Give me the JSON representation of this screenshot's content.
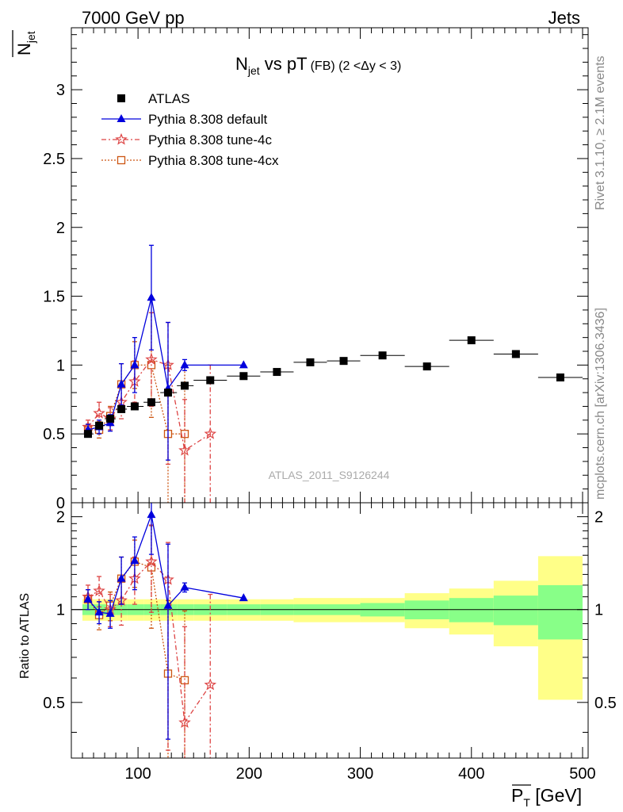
{
  "header": {
    "left": "7000 GeV pp",
    "right": "Jets"
  },
  "side_text": {
    "rivet": "Rivet 3.1.10, ≥ 2.1M events",
    "source": "mcplots.cern.ch [arXiv:1306.3436]"
  },
  "watermark": "ATLAS_2011_S9126244",
  "chart_data": {
    "type": "scatter",
    "title_main": "N",
    "title_sub": "jet",
    "title_rest": " vs pT",
    "title_small": "(FB) (2 <Δy < 3)",
    "ylabel_top": "N",
    "ylabel_top_sub": "jet",
    "ylabel_bottom": "Ratio to ATLAS",
    "xlabel": "P",
    "xlabel_sub": "T",
    "xlabel_unit": " [GeV]",
    "xlim": [
      40,
      505
    ],
    "top": {
      "ylim": [
        0,
        3.45
      ],
      "yticks": [
        "0",
        "0.5",
        "1",
        "1.5",
        "2",
        "2.5",
        "3"
      ]
    },
    "bottom": {
      "ylim": [
        0.33,
        2.22
      ],
      "yticks_left": [
        "0.5",
        "1",
        "2"
      ],
      "yticks_right": [
        "0.5",
        "1",
        "2"
      ]
    },
    "xticks": [
      "100",
      "200",
      "300",
      "400",
      "500"
    ],
    "legend": {
      "position": "top-left",
      "entries": [
        "ATLAS",
        "Pythia 8.308 default",
        "Pythia 8.308 tune-4c",
        "Pythia 8.308 tune-4cx"
      ]
    },
    "series": [
      {
        "name": "ATLAS",
        "color": "#000000",
        "marker": "square",
        "points": [
          {
            "x": 55,
            "y": 0.5,
            "xlo": 50,
            "xhi": 60
          },
          {
            "x": 65,
            "y": 0.56,
            "xlo": 60,
            "xhi": 70
          },
          {
            "x": 75,
            "y": 0.61,
            "xlo": 70,
            "xhi": 80
          },
          {
            "x": 85,
            "y": 0.68,
            "xlo": 80,
            "xhi": 90
          },
          {
            "x": 97,
            "y": 0.7,
            "xlo": 90,
            "xhi": 105
          },
          {
            "x": 112,
            "y": 0.73,
            "xlo": 105,
            "xhi": 120
          },
          {
            "x": 127,
            "y": 0.8,
            "xlo": 120,
            "xhi": 135
          },
          {
            "x": 142,
            "y": 0.85,
            "xlo": 135,
            "xhi": 150
          },
          {
            "x": 165,
            "y": 0.89,
            "xlo": 150,
            "xhi": 180
          },
          {
            "x": 195,
            "y": 0.92,
            "xlo": 180,
            "xhi": 210
          },
          {
            "x": 225,
            "y": 0.95,
            "xlo": 210,
            "xhi": 240
          },
          {
            "x": 255,
            "y": 1.02,
            "xlo": 240,
            "xhi": 270
          },
          {
            "x": 285,
            "y": 1.03,
            "xlo": 270,
            "xhi": 300
          },
          {
            "x": 320,
            "y": 1.07,
            "xlo": 300,
            "xhi": 340
          },
          {
            "x": 360,
            "y": 0.99,
            "xlo": 340,
            "xhi": 380
          },
          {
            "x": 400,
            "y": 1.18,
            "xlo": 380,
            "xhi": 420
          },
          {
            "x": 440,
            "y": 1.08,
            "xlo": 420,
            "xhi": 460
          },
          {
            "x": 480,
            "y": 0.91,
            "xlo": 460,
            "xhi": 500
          }
        ]
      },
      {
        "name": "Pythia 8.308 default",
        "color": "#0000dd",
        "marker": "triangle",
        "dash": "",
        "points": [
          {
            "x": 55,
            "y": 0.53,
            "elo": 0.04,
            "ehi": 0.04
          },
          {
            "x": 65,
            "y": 0.55,
            "elo": 0.05,
            "ehi": 0.05
          },
          {
            "x": 75,
            "y": 0.58,
            "elo": 0.06,
            "ehi": 0.06
          },
          {
            "x": 85,
            "y": 0.86,
            "elo": 0.15,
            "ehi": 0.15
          },
          {
            "x": 97,
            "y": 1.0,
            "elo": 0.2,
            "ehi": 0.2
          },
          {
            "x": 112,
            "y": 1.49,
            "elo": 0.38,
            "ehi": 0.38
          },
          {
            "x": 127,
            "y": 0.83,
            "elo": 0.52,
            "ehi": 0.48
          },
          {
            "x": 142,
            "y": 1.0,
            "elo": 0.04,
            "ehi": 0.04
          },
          {
            "x": 195,
            "y": 1.0,
            "elo": 0.0,
            "ehi": 0.0
          }
        ]
      },
      {
        "name": "Pythia 8.308 tune-4c",
        "color": "#dd4444",
        "marker": "star",
        "dash": "6,3,2,3",
        "points": [
          {
            "x": 55,
            "y": 0.55,
            "elo": 0.05,
            "ehi": 0.05
          },
          {
            "x": 65,
            "y": 0.65,
            "elo": 0.07,
            "ehi": 0.08
          },
          {
            "x": 75,
            "y": 0.61,
            "elo": 0.08,
            "ehi": 0.08
          },
          {
            "x": 85,
            "y": 0.73,
            "elo": 0.12,
            "ehi": 0.12
          },
          {
            "x": 97,
            "y": 0.88,
            "elo": 0.15,
            "ehi": 0.15
          },
          {
            "x": 112,
            "y": 1.04,
            "elo": 0.34,
            "ehi": 0.34
          },
          {
            "x": 127,
            "y": 1.0,
            "elo": 0.72,
            "ehi": 0.31
          },
          {
            "x": 142,
            "y": 0.38,
            "elo": 0.5,
            "ehi": 0.37
          },
          {
            "x": 165,
            "y": 0.5,
            "elo": 0.6,
            "ehi": 0.5
          }
        ]
      },
      {
        "name": "Pythia 8.308 tune-4cx",
        "color": "#cc5511",
        "marker": "opensquare",
        "dash": "2,2",
        "points": [
          {
            "x": 55,
            "y": 0.53,
            "elo": 0.04,
            "ehi": 0.04
          },
          {
            "x": 65,
            "y": 0.53,
            "elo": 0.06,
            "ehi": 0.06
          },
          {
            "x": 75,
            "y": 0.63,
            "elo": 0.07,
            "ehi": 0.07
          },
          {
            "x": 85,
            "y": 0.86,
            "elo": 0.15,
            "ehi": 0.15
          },
          {
            "x": 97,
            "y": 1.0,
            "elo": 0.17,
            "ehi": 0.17
          },
          {
            "x": 112,
            "y": 1.0,
            "elo": 0.38,
            "ehi": 0.38
          },
          {
            "x": 127,
            "y": 0.5,
            "elo": 0.5,
            "ehi": 0.5
          },
          {
            "x": 142,
            "y": 0.5,
            "elo": 0.5,
            "ehi": 0.5
          }
        ]
      }
    ],
    "bands": [
      {
        "xlo": 50,
        "xhi": 60,
        "stat": 0.04,
        "tot": 0.08
      },
      {
        "xlo": 60,
        "xhi": 70,
        "stat": 0.04,
        "tot": 0.08
      },
      {
        "xlo": 70,
        "xhi": 80,
        "stat": 0.04,
        "tot": 0.08
      },
      {
        "xlo": 80,
        "xhi": 90,
        "stat": 0.04,
        "tot": 0.08
      },
      {
        "xlo": 90,
        "xhi": 105,
        "stat": 0.04,
        "tot": 0.08
      },
      {
        "xlo": 105,
        "xhi": 120,
        "stat": 0.04,
        "tot": 0.08
      },
      {
        "xlo": 120,
        "xhi": 135,
        "stat": 0.04,
        "tot": 0.08
      },
      {
        "xlo": 135,
        "xhi": 150,
        "stat": 0.04,
        "tot": 0.08
      },
      {
        "xlo": 150,
        "xhi": 180,
        "stat": 0.04,
        "tot": 0.08
      },
      {
        "xlo": 180,
        "xhi": 210,
        "stat": 0.04,
        "tot": 0.08
      },
      {
        "xlo": 210,
        "xhi": 240,
        "stat": 0.04,
        "tot": 0.08
      },
      {
        "xlo": 240,
        "xhi": 270,
        "stat": 0.04,
        "tot": 0.09
      },
      {
        "xlo": 270,
        "xhi": 300,
        "stat": 0.04,
        "tot": 0.09
      },
      {
        "xlo": 300,
        "xhi": 340,
        "stat": 0.05,
        "tot": 0.09
      },
      {
        "xlo": 340,
        "xhi": 380,
        "stat": 0.07,
        "tot": 0.13
      },
      {
        "xlo": 380,
        "xhi": 420,
        "stat": 0.09,
        "tot": 0.17
      },
      {
        "xlo": 420,
        "xhi": 460,
        "stat": 0.11,
        "tot": 0.24
      },
      {
        "xlo": 460,
        "xhi": 500,
        "stat": 0.2,
        "tot": 0.49
      }
    ],
    "ratios": [
      {
        "name": "Pythia 8.308 default",
        "points": [
          {
            "x": 55,
            "y": 1.08,
            "elo": 0.08,
            "ehi": 0.08
          },
          {
            "x": 65,
            "y": 0.98,
            "elo": 0.08,
            "ehi": 0.08
          },
          {
            "x": 75,
            "y": 0.97,
            "elo": 0.1,
            "ehi": 0.1
          },
          {
            "x": 85,
            "y": 1.26,
            "elo": 0.22,
            "ehi": 0.22
          },
          {
            "x": 97,
            "y": 1.44,
            "elo": 0.28,
            "ehi": 0.28
          },
          {
            "x": 112,
            "y": 2.03,
            "elo": 0.52,
            "ehi": 0.52
          },
          {
            "x": 127,
            "y": 1.03,
            "elo": 0.65,
            "ehi": 0.6
          },
          {
            "x": 142,
            "y": 1.18,
            "elo": 0.04,
            "ehi": 0.04
          },
          {
            "x": 195,
            "y": 1.09,
            "elo": 0.0,
            "ehi": 0.0
          }
        ]
      },
      {
        "name": "Pythia 8.308 tune-4c",
        "points": [
          {
            "x": 55,
            "y": 1.1,
            "elo": 0.1,
            "ehi": 0.1
          },
          {
            "x": 65,
            "y": 1.15,
            "elo": 0.13,
            "ehi": 0.13
          },
          {
            "x": 75,
            "y": 1.0,
            "elo": 0.12,
            "ehi": 0.12
          },
          {
            "x": 85,
            "y": 1.07,
            "elo": 0.18,
            "ehi": 0.18
          },
          {
            "x": 97,
            "y": 1.26,
            "elo": 0.22,
            "ehi": 0.22
          },
          {
            "x": 112,
            "y": 1.43,
            "elo": 0.45,
            "ehi": 0.45
          },
          {
            "x": 127,
            "y": 1.25,
            "elo": 0.9,
            "ehi": 0.4
          },
          {
            "x": 142,
            "y": 0.43,
            "elo": 0.2,
            "ehi": 0.45
          },
          {
            "x": 165,
            "y": 0.57,
            "elo": 0.3,
            "ehi": 0.55
          }
        ]
      },
      {
        "name": "Pythia 8.308 tune-4cx",
        "points": [
          {
            "x": 55,
            "y": 1.08,
            "elo": 0.08,
            "ehi": 0.08
          },
          {
            "x": 65,
            "y": 0.96,
            "elo": 0.1,
            "ehi": 0.1
          },
          {
            "x": 75,
            "y": 1.03,
            "elo": 0.11,
            "ehi": 0.11
          },
          {
            "x": 85,
            "y": 1.26,
            "elo": 0.22,
            "ehi": 0.22
          },
          {
            "x": 97,
            "y": 1.43,
            "elo": 0.25,
            "ehi": 0.25
          },
          {
            "x": 112,
            "y": 1.37,
            "elo": 0.5,
            "ehi": 0.5
          },
          {
            "x": 127,
            "y": 0.62,
            "elo": 0.45,
            "ehi": 0.45
          },
          {
            "x": 142,
            "y": 0.59,
            "elo": 0.4,
            "ehi": 0.4
          }
        ]
      }
    ]
  }
}
